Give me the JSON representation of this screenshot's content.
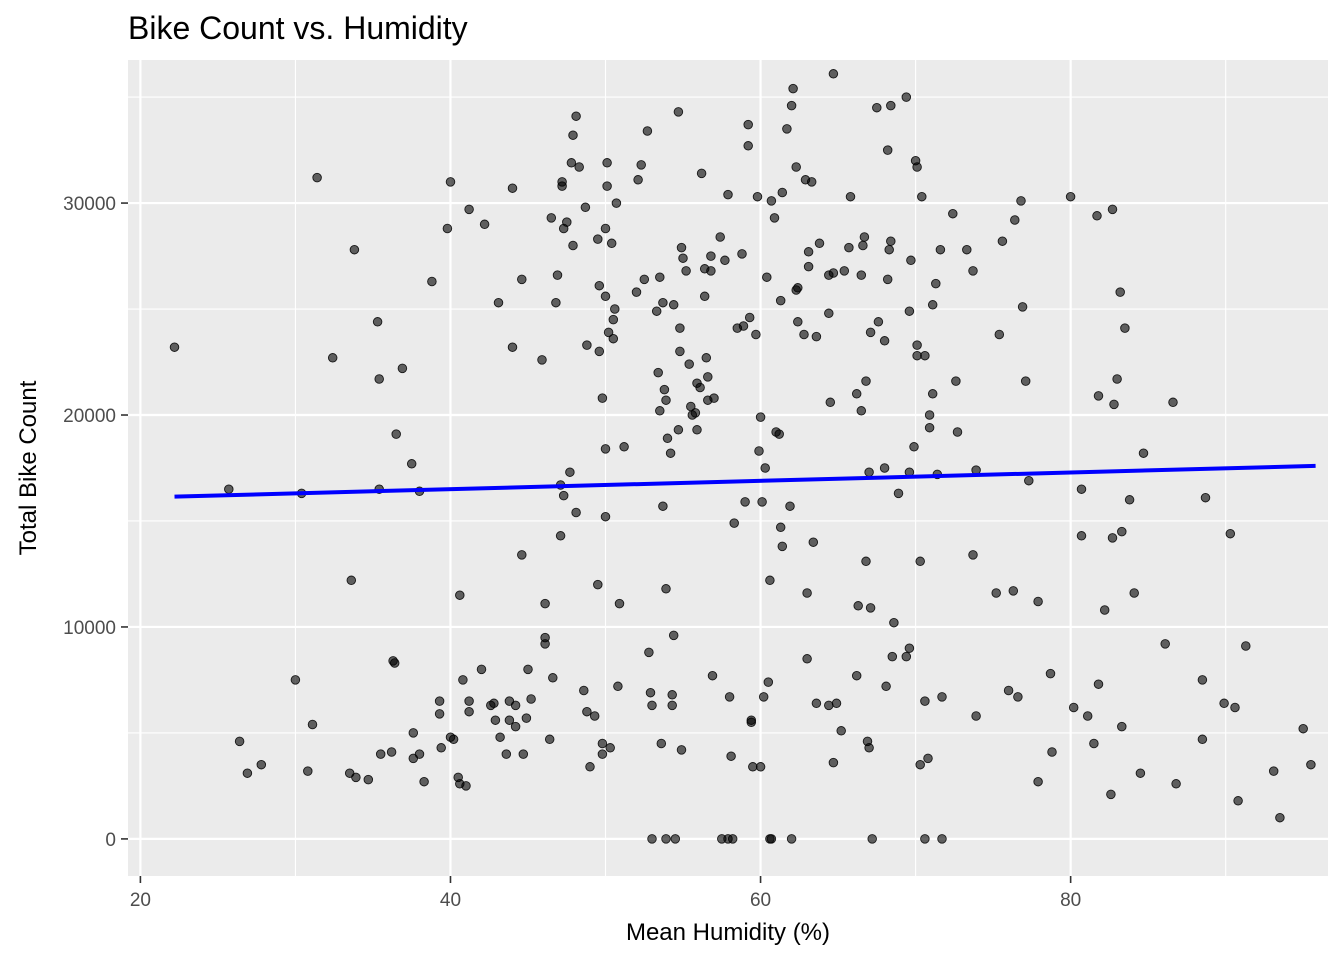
{
  "chart_data": {
    "type": "scatter",
    "title": "Bike Count vs. Humidity",
    "xlabel": "Mean Humidity (%)",
    "ylabel": "Total Bike Count",
    "xlim": [
      19.2,
      96.6
    ],
    "ylim": [
      -1750,
      36750
    ],
    "x_ticks": [
      20,
      40,
      60,
      80
    ],
    "y_ticks": [
      0,
      10000,
      20000,
      30000
    ],
    "grid": true,
    "legend": "none",
    "colors": {
      "panel": "#ebebeb",
      "grid": "#ffffff",
      "point": "#000000",
      "trend": "#0000ff"
    },
    "trend_line": {
      "x": [
        22.2,
        95.8
      ],
      "y": [
        16150,
        17600
      ]
    },
    "points": [
      [
        22.2,
        23200
      ],
      [
        25.7,
        16500
      ],
      [
        26.4,
        4600
      ],
      [
        26.9,
        3100
      ],
      [
        27.8,
        3500
      ],
      [
        30.0,
        7500
      ],
      [
        30.4,
        16300
      ],
      [
        30.8,
        3200
      ],
      [
        31.1,
        5400
      ],
      [
        31.4,
        31200
      ],
      [
        32.4,
        22700
      ],
      [
        33.5,
        3100
      ],
      [
        33.6,
        12200
      ],
      [
        33.8,
        27800
      ],
      [
        33.9,
        2900
      ],
      [
        34.7,
        2800
      ],
      [
        35.3,
        24400
      ],
      [
        35.4,
        21700
      ],
      [
        35.4,
        16500
      ],
      [
        35.5,
        4000
      ],
      [
        36.2,
        4100
      ],
      [
        36.3,
        8400
      ],
      [
        36.4,
        8300
      ],
      [
        36.5,
        19100
      ],
      [
        36.9,
        22200
      ],
      [
        37.5,
        17700
      ],
      [
        37.6,
        5000
      ],
      [
        37.6,
        3800
      ],
      [
        38.0,
        16400
      ],
      [
        38.0,
        4000
      ],
      [
        38.3,
        2700
      ],
      [
        38.8,
        26300
      ],
      [
        39.3,
        6500
      ],
      [
        39.3,
        5900
      ],
      [
        39.4,
        4300
      ],
      [
        39.8,
        28800
      ],
      [
        40.0,
        31000
      ],
      [
        40.0,
        4800
      ],
      [
        40.2,
        4700
      ],
      [
        40.5,
        2900
      ],
      [
        40.6,
        2600
      ],
      [
        40.6,
        11500
      ],
      [
        40.8,
        7500
      ],
      [
        41.0,
        2500
      ],
      [
        41.2,
        29700
      ],
      [
        41.2,
        6500
      ],
      [
        41.2,
        6000
      ],
      [
        42.0,
        8000
      ],
      [
        42.2,
        29000
      ],
      [
        42.6,
        6300
      ],
      [
        42.8,
        6400
      ],
      [
        42.9,
        5600
      ],
      [
        43.1,
        25300
      ],
      [
        43.2,
        4800
      ],
      [
        43.6,
        4000
      ],
      [
        43.8,
        6500
      ],
      [
        43.8,
        5600
      ],
      [
        44.0,
        30700
      ],
      [
        44.0,
        23200
      ],
      [
        44.2,
        6300
      ],
      [
        44.2,
        5300
      ],
      [
        44.6,
        26400
      ],
      [
        44.6,
        13400
      ],
      [
        44.7,
        4000
      ],
      [
        44.9,
        5700
      ],
      [
        45.0,
        8000
      ],
      [
        45.2,
        6600
      ],
      [
        45.9,
        22600
      ],
      [
        46.1,
        9500
      ],
      [
        46.1,
        11100
      ],
      [
        46.1,
        9200
      ],
      [
        46.4,
        4700
      ],
      [
        46.5,
        29300
      ],
      [
        46.6,
        7600
      ],
      [
        46.8,
        25300
      ],
      [
        46.9,
        26600
      ],
      [
        47.1,
        16700
      ],
      [
        47.1,
        14300
      ],
      [
        47.2,
        30800
      ],
      [
        47.2,
        31000
      ],
      [
        47.3,
        28800
      ],
      [
        47.3,
        16200
      ],
      [
        47.5,
        29100
      ],
      [
        47.7,
        17300
      ],
      [
        47.8,
        31900
      ],
      [
        47.9,
        28000
      ],
      [
        47.9,
        33200
      ],
      [
        48.1,
        34100
      ],
      [
        48.1,
        15400
      ],
      [
        48.3,
        31700
      ],
      [
        48.6,
        7000
      ],
      [
        48.7,
        29800
      ],
      [
        48.8,
        23300
      ],
      [
        48.8,
        6000
      ],
      [
        49.0,
        3400
      ],
      [
        49.3,
        5800
      ],
      [
        49.5,
        12000
      ],
      [
        49.5,
        28300
      ],
      [
        49.6,
        23000
      ],
      [
        49.6,
        26100
      ],
      [
        49.8,
        20800
      ],
      [
        49.8,
        4500
      ],
      [
        49.8,
        4000
      ],
      [
        50.0,
        25600
      ],
      [
        50.0,
        15200
      ],
      [
        50.0,
        18400
      ],
      [
        50.0,
        28800
      ],
      [
        50.1,
        30800
      ],
      [
        50.1,
        31900
      ],
      [
        50.2,
        23900
      ],
      [
        50.3,
        4300
      ],
      [
        50.4,
        28100
      ],
      [
        50.5,
        23600
      ],
      [
        50.5,
        24500
      ],
      [
        50.6,
        25000
      ],
      [
        50.7,
        30000
      ],
      [
        50.8,
        7200
      ],
      [
        50.9,
        11100
      ],
      [
        51.2,
        18500
      ],
      [
        52.0,
        25800
      ],
      [
        52.1,
        31100
      ],
      [
        52.3,
        31800
      ],
      [
        52.5,
        26400
      ],
      [
        52.7,
        33400
      ],
      [
        52.8,
        8800
      ],
      [
        52.9,
        6900
      ],
      [
        53.0,
        6300
      ],
      [
        53.0,
        0
      ],
      [
        53.3,
        24900
      ],
      [
        53.4,
        22000
      ],
      [
        53.5,
        26500
      ],
      [
        53.5,
        20200
      ],
      [
        53.6,
        4500
      ],
      [
        53.7,
        25300
      ],
      [
        53.7,
        15700
      ],
      [
        53.8,
        21200
      ],
      [
        53.9,
        11800
      ],
      [
        53.9,
        0
      ],
      [
        53.9,
        20700
      ],
      [
        54.0,
        18900
      ],
      [
        54.2,
        18200
      ],
      [
        54.3,
        6800
      ],
      [
        54.3,
        6300
      ],
      [
        54.4,
        25200
      ],
      [
        54.4,
        9600
      ],
      [
        54.5,
        0
      ],
      [
        54.7,
        34300
      ],
      [
        54.7,
        19300
      ],
      [
        54.8,
        24100
      ],
      [
        54.8,
        23000
      ],
      [
        54.9,
        4200
      ],
      [
        54.9,
        27900
      ],
      [
        55.0,
        27400
      ],
      [
        55.2,
        26800
      ],
      [
        55.4,
        22400
      ],
      [
        55.5,
        20400
      ],
      [
        55.6,
        20000
      ],
      [
        55.8,
        20100
      ],
      [
        55.9,
        21500
      ],
      [
        55.9,
        19300
      ],
      [
        56.1,
        21300
      ],
      [
        56.2,
        31400
      ],
      [
        56.4,
        26900
      ],
      [
        56.4,
        25600
      ],
      [
        56.5,
        22700
      ],
      [
        56.6,
        21800
      ],
      [
        56.6,
        20700
      ],
      [
        56.8,
        27500
      ],
      [
        56.8,
        26800
      ],
      [
        56.9,
        7700
      ],
      [
        57.0,
        20800
      ],
      [
        57.4,
        28400
      ],
      [
        57.5,
        0
      ],
      [
        57.7,
        27300
      ],
      [
        57.9,
        30400
      ],
      [
        57.9,
        0
      ],
      [
        58.0,
        6700
      ],
      [
        58.1,
        3900
      ],
      [
        58.2,
        0
      ],
      [
        58.3,
        14900
      ],
      [
        58.5,
        24100
      ],
      [
        58.8,
        27600
      ],
      [
        58.9,
        24200
      ],
      [
        59.0,
        15900
      ],
      [
        59.2,
        33700
      ],
      [
        59.2,
        32700
      ],
      [
        59.3,
        24600
      ],
      [
        59.4,
        5500
      ],
      [
        59.4,
        5600
      ],
      [
        59.5,
        3400
      ],
      [
        59.7,
        23800
      ],
      [
        59.8,
        30300
      ],
      [
        59.9,
        18300
      ],
      [
        60.0,
        3400
      ],
      [
        60.0,
        19900
      ],
      [
        60.1,
        15900
      ],
      [
        60.2,
        6700
      ],
      [
        60.3,
        17500
      ],
      [
        60.4,
        26500
      ],
      [
        60.5,
        7400
      ],
      [
        60.6,
        12200
      ],
      [
        60.6,
        0
      ],
      [
        60.7,
        30100
      ],
      [
        60.7,
        0
      ],
      [
        60.9,
        29300
      ],
      [
        61.0,
        19200
      ],
      [
        61.2,
        19100
      ],
      [
        61.3,
        14700
      ],
      [
        61.3,
        25400
      ],
      [
        61.4,
        30500
      ],
      [
        61.4,
        13800
      ],
      [
        61.7,
        33500
      ],
      [
        61.9,
        15700
      ],
      [
        62.0,
        34600
      ],
      [
        62.0,
        0
      ],
      [
        62.1,
        35400
      ],
      [
        62.3,
        25900
      ],
      [
        62.3,
        31700
      ],
      [
        62.4,
        24400
      ],
      [
        62.4,
        26000
      ],
      [
        62.8,
        23800
      ],
      [
        62.9,
        31100
      ],
      [
        63.0,
        11600
      ],
      [
        63.0,
        8500
      ],
      [
        63.1,
        27700
      ],
      [
        63.1,
        27000
      ],
      [
        63.3,
        31000
      ],
      [
        63.4,
        14000
      ],
      [
        63.6,
        23700
      ],
      [
        63.6,
        6400
      ],
      [
        63.8,
        28100
      ],
      [
        64.4,
        24800
      ],
      [
        64.4,
        26600
      ],
      [
        64.4,
        6300
      ],
      [
        64.5,
        20600
      ],
      [
        64.7,
        26700
      ],
      [
        64.7,
        3600
      ],
      [
        64.7,
        36100
      ],
      [
        64.9,
        6400
      ],
      [
        65.2,
        5100
      ],
      [
        65.4,
        26800
      ],
      [
        65.7,
        27900
      ],
      [
        65.8,
        30300
      ],
      [
        66.2,
        7700
      ],
      [
        66.2,
        21000
      ],
      [
        66.3,
        11000
      ],
      [
        66.5,
        26600
      ],
      [
        66.5,
        20200
      ],
      [
        66.6,
        28000
      ],
      [
        66.7,
        28400
      ],
      [
        66.8,
        13100
      ],
      [
        66.8,
        21600
      ],
      [
        66.9,
        4600
      ],
      [
        67.0,
        4300
      ],
      [
        67.0,
        17300
      ],
      [
        67.1,
        23900
      ],
      [
        67.1,
        10900
      ],
      [
        67.2,
        0
      ],
      [
        67.5,
        34500
      ],
      [
        67.6,
        24400
      ],
      [
        68.0,
        17500
      ],
      [
        68.0,
        23500
      ],
      [
        68.1,
        7200
      ],
      [
        68.2,
        26400
      ],
      [
        68.2,
        32500
      ],
      [
        68.3,
        27800
      ],
      [
        68.4,
        28200
      ],
      [
        68.4,
        34600
      ],
      [
        68.5,
        8600
      ],
      [
        68.6,
        10200
      ],
      [
        68.9,
        16300
      ],
      [
        69.4,
        35000
      ],
      [
        69.4,
        8600
      ],
      [
        69.6,
        9000
      ],
      [
        69.6,
        17300
      ],
      [
        69.6,
        24900
      ],
      [
        69.7,
        27300
      ],
      [
        69.9,
        18500
      ],
      [
        70.0,
        32000
      ],
      [
        70.1,
        22800
      ],
      [
        70.1,
        31700
      ],
      [
        70.1,
        23300
      ],
      [
        70.3,
        13100
      ],
      [
        70.3,
        3500
      ],
      [
        70.4,
        30300
      ],
      [
        70.6,
        0
      ],
      [
        70.6,
        6500
      ],
      [
        70.6,
        22800
      ],
      [
        70.8,
        3800
      ],
      [
        70.9,
        19400
      ],
      [
        70.9,
        20000
      ],
      [
        71.1,
        25200
      ],
      [
        71.1,
        21000
      ],
      [
        71.3,
        26200
      ],
      [
        71.4,
        17200
      ],
      [
        71.6,
        27800
      ],
      [
        71.7,
        6700
      ],
      [
        71.7,
        0
      ],
      [
        72.4,
        29500
      ],
      [
        72.6,
        21600
      ],
      [
        72.7,
        19200
      ],
      [
        73.3,
        27800
      ],
      [
        73.7,
        13400
      ],
      [
        73.7,
        26800
      ],
      [
        73.9,
        17400
      ],
      [
        73.9,
        5800
      ],
      [
        75.2,
        11600
      ],
      [
        75.4,
        23800
      ],
      [
        75.6,
        28200
      ],
      [
        76.0,
        7000
      ],
      [
        76.3,
        11700
      ],
      [
        76.4,
        29200
      ],
      [
        76.6,
        6700
      ],
      [
        76.8,
        30100
      ],
      [
        76.9,
        25100
      ],
      [
        77.1,
        21600
      ],
      [
        77.3,
        16900
      ],
      [
        77.9,
        11200
      ],
      [
        77.9,
        2700
      ],
      [
        78.7,
        7800
      ],
      [
        78.8,
        4100
      ],
      [
        80.0,
        30300
      ],
      [
        80.2,
        6200
      ],
      [
        80.7,
        16500
      ],
      [
        80.7,
        14300
      ],
      [
        81.1,
        5800
      ],
      [
        81.5,
        4500
      ],
      [
        81.7,
        29400
      ],
      [
        81.8,
        7300
      ],
      [
        81.8,
        20900
      ],
      [
        82.2,
        10800
      ],
      [
        82.6,
        2100
      ],
      [
        82.7,
        14200
      ],
      [
        82.7,
        29700
      ],
      [
        82.8,
        20500
      ],
      [
        83.0,
        21700
      ],
      [
        83.2,
        25800
      ],
      [
        83.3,
        14500
      ],
      [
        83.3,
        5300
      ],
      [
        83.5,
        24100
      ],
      [
        83.8,
        16000
      ],
      [
        84.1,
        11600
      ],
      [
        84.5,
        3100
      ],
      [
        84.7,
        18200
      ],
      [
        86.1,
        9200
      ],
      [
        86.6,
        20600
      ],
      [
        86.8,
        2600
      ],
      [
        88.5,
        4700
      ],
      [
        88.5,
        7500
      ],
      [
        88.7,
        16100
      ],
      [
        89.9,
        6400
      ],
      [
        90.3,
        14400
      ],
      [
        90.6,
        6200
      ],
      [
        90.8,
        1800
      ],
      [
        91.3,
        9100
      ],
      [
        93.1,
        3200
      ],
      [
        93.5,
        1000
      ],
      [
        95.0,
        5200
      ],
      [
        95.5,
        3500
      ]
    ]
  }
}
